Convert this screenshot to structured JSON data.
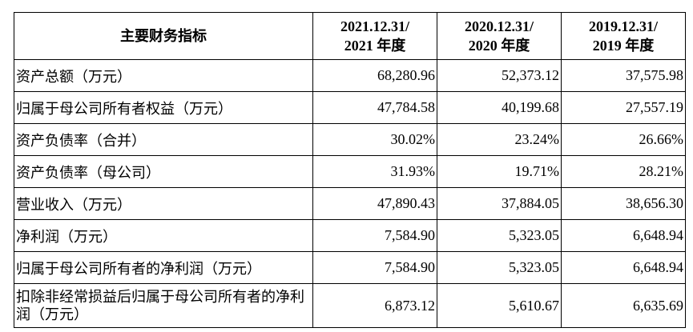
{
  "table": {
    "header": [
      [
        "主要财务指标"
      ],
      [
        "2021.12.31/",
        "2021 年度"
      ],
      [
        "2020.12.31/",
        "2020 年度"
      ],
      [
        "2019.12.31/",
        "2019 年度"
      ]
    ],
    "rows": [
      [
        "资产总额（万元）",
        "68,280.96",
        "52,373.12",
        "37,575.98"
      ],
      [
        "归属于母公司所有者权益（万元）",
        "47,784.58",
        "40,199.68",
        "27,557.19"
      ],
      [
        "资产负债率（合并）",
        "30.02%",
        "23.24%",
        "26.66%"
      ],
      [
        "资产负债率（母公司）",
        "31.93%",
        "19.71%",
        "28.21%"
      ],
      [
        "营业收入（万元）",
        "47,890.43",
        "37,884.05",
        "38,656.30"
      ],
      [
        "净利润（万元）",
        "7,584.90",
        "5,323.05",
        "6,648.94"
      ],
      [
        "归属于母公司所有者的净利润（万元）",
        "7,584.90",
        "5,323.05",
        "6,648.94"
      ],
      [
        "扣除非经常损益后归属于母公司所有者的净利润（万元）",
        "6,873.12",
        "5,610.67",
        "6,635.69"
      ]
    ]
  }
}
